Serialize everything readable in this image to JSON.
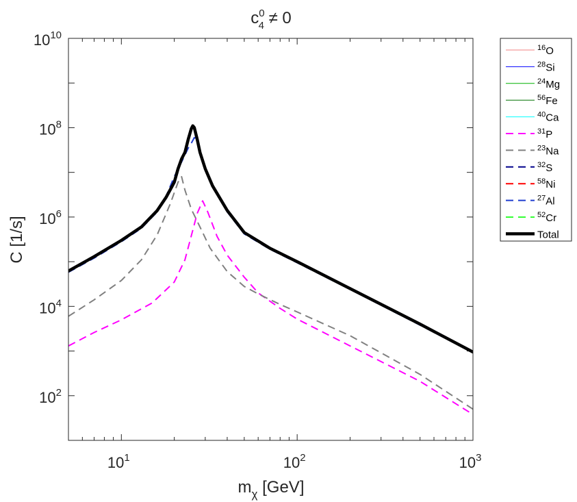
{
  "chart_data": {
    "type": "line",
    "title": "c_4^0 ≠ 0",
    "title_parts": {
      "base": "c",
      "sup": "0",
      "sub": "4",
      "rest": " ≠ 0"
    },
    "xlabel": "m_χ [GeV]",
    "xlabel_parts": {
      "base": "m",
      "sub": "χ",
      "rest": " [GeV]"
    },
    "ylabel": "C [1/s]",
    "xscale": "log",
    "yscale": "log",
    "xlim": [
      5,
      1000
    ],
    "ylim": [
      10,
      10000000000
    ],
    "x_ticks": [
      {
        "value": 10,
        "base": "10",
        "exp": "1"
      },
      {
        "value": 100,
        "base": "10",
        "exp": "2"
      },
      {
        "value": 1000,
        "base": "10",
        "exp": "3"
      }
    ],
    "y_ticks": [
      {
        "value": 100,
        "base": "10",
        "exp": "2"
      },
      {
        "value": 10000,
        "base": "10",
        "exp": "4"
      },
      {
        "value": 1000000,
        "base": "10",
        "exp": "6"
      },
      {
        "value": 100000000,
        "base": "10",
        "exp": "8"
      },
      {
        "value": 10000000000,
        "base": "10",
        "exp": "10"
      }
    ],
    "legend_location": "outside-right",
    "series": [
      {
        "name": "16O",
        "label_sup": "16",
        "label_el": "O",
        "color": "#f08080",
        "style": "solid",
        "width": 1,
        "points": []
      },
      {
        "name": "28Si",
        "label_sup": "28",
        "label_el": "Si",
        "color": "#0000ff",
        "style": "solid",
        "width": 1,
        "points": []
      },
      {
        "name": "24Mg",
        "label_sup": "24",
        "label_el": "Mg",
        "color": "#00b000",
        "style": "solid",
        "width": 1,
        "points": []
      },
      {
        "name": "56Fe",
        "label_sup": "56",
        "label_el": "Fe",
        "color": "#007000",
        "style": "solid",
        "width": 1,
        "points": []
      },
      {
        "name": "40Ca",
        "label_sup": "40",
        "label_el": "Ca",
        "color": "#00ffff",
        "style": "solid",
        "width": 1,
        "points": []
      },
      {
        "name": "31P",
        "label_sup": "31",
        "label_el": "P",
        "color": "#ff00ff",
        "style": "dashed",
        "width": 2,
        "points": [
          [
            5,
            1300
          ],
          [
            7,
            2600
          ],
          [
            10,
            5000
          ],
          [
            15,
            12000
          ],
          [
            20,
            35000
          ],
          [
            23,
            110000
          ],
          [
            25,
            380000
          ],
          [
            27,
            1200000
          ],
          [
            29,
            2300000
          ],
          [
            31,
            1300000
          ],
          [
            35,
            370000
          ],
          [
            40,
            140000
          ],
          [
            50,
            45000
          ],
          [
            60,
            20000
          ],
          [
            80,
            9000
          ],
          [
            100,
            5200
          ],
          [
            200,
            1300
          ],
          [
            500,
            210
          ],
          [
            1000,
            38
          ]
        ]
      },
      {
        "name": "23Na",
        "label_sup": "23",
        "label_el": "Na",
        "color": "#808080",
        "style": "dashed",
        "width": 2,
        "points": [
          [
            5,
            6000
          ],
          [
            7,
            14000
          ],
          [
            10,
            38000
          ],
          [
            13,
            110000
          ],
          [
            16,
            400000
          ],
          [
            19,
            2000000
          ],
          [
            21,
            6000000
          ],
          [
            22,
            8000000
          ],
          [
            23,
            4000000
          ],
          [
            25,
            1500000
          ],
          [
            28,
            600000
          ],
          [
            32,
            200000
          ],
          [
            40,
            60000
          ],
          [
            50,
            28000
          ],
          [
            60,
            19000
          ],
          [
            80,
            11000
          ],
          [
            100,
            7500
          ],
          [
            200,
            2200
          ],
          [
            500,
            300
          ],
          [
            1000,
            50
          ]
        ]
      },
      {
        "name": "32S",
        "label_sup": "32",
        "label_el": "S",
        "color": "#00008b",
        "style": "dashed",
        "width": 2,
        "points": []
      },
      {
        "name": "58Ni",
        "label_sup": "58",
        "label_el": "Ni",
        "color": "#ff0000",
        "style": "dashed",
        "width": 2,
        "points": []
      },
      {
        "name": "27Al",
        "label_sup": "27",
        "label_el": "Al",
        "color": "#1f3ccf",
        "style": "dashed",
        "width": 2,
        "points": [
          [
            5,
            58000
          ],
          [
            7,
            120000
          ],
          [
            10,
            280000
          ],
          [
            13,
            560000
          ],
          [
            16,
            1300000
          ],
          [
            18,
            3000000
          ],
          [
            20,
            8000000
          ],
          [
            22,
            17000000
          ],
          [
            24,
            35000000
          ],
          [
            25,
            45000000
          ],
          [
            26,
            60000000
          ],
          [
            27,
            50000000
          ],
          [
            28,
            28000000
          ],
          [
            30,
            12000000
          ],
          [
            33,
            5000000
          ],
          [
            40,
            1300000
          ],
          [
            50,
            420000
          ],
          [
            70,
            190000
          ],
          [
            100,
            95000
          ],
          [
            200,
            24000
          ],
          [
            500,
            3800
          ],
          [
            1000,
            920
          ]
        ]
      },
      {
        "name": "52Cr",
        "label_sup": "52",
        "label_el": "Cr",
        "color": "#33ff33",
        "style": "dashed",
        "width": 2,
        "points": []
      },
      {
        "name": "Total",
        "label_sup": "",
        "label_el": "Total",
        "color": "#000000",
        "style": "solid",
        "width": 4.5,
        "points": [
          [
            5,
            62000
          ],
          [
            7,
            130000
          ],
          [
            10,
            300000
          ],
          [
            13,
            600000
          ],
          [
            16,
            1400000
          ],
          [
            18,
            2800000
          ],
          [
            20,
            6000000
          ],
          [
            21,
            12000000
          ],
          [
            22,
            20000000
          ],
          [
            23,
            28000000
          ],
          [
            24,
            55000000
          ],
          [
            25,
            95000000
          ],
          [
            25.5,
            110000000
          ],
          [
            26,
            100000000
          ],
          [
            27,
            55000000
          ],
          [
            28,
            28000000
          ],
          [
            30,
            12000000
          ],
          [
            33,
            5000000
          ],
          [
            40,
            1400000
          ],
          [
            50,
            450000
          ],
          [
            70,
            200000
          ],
          [
            100,
            100000
          ],
          [
            200,
            25000
          ],
          [
            500,
            4000
          ],
          [
            1000,
            950
          ]
        ]
      }
    ]
  }
}
